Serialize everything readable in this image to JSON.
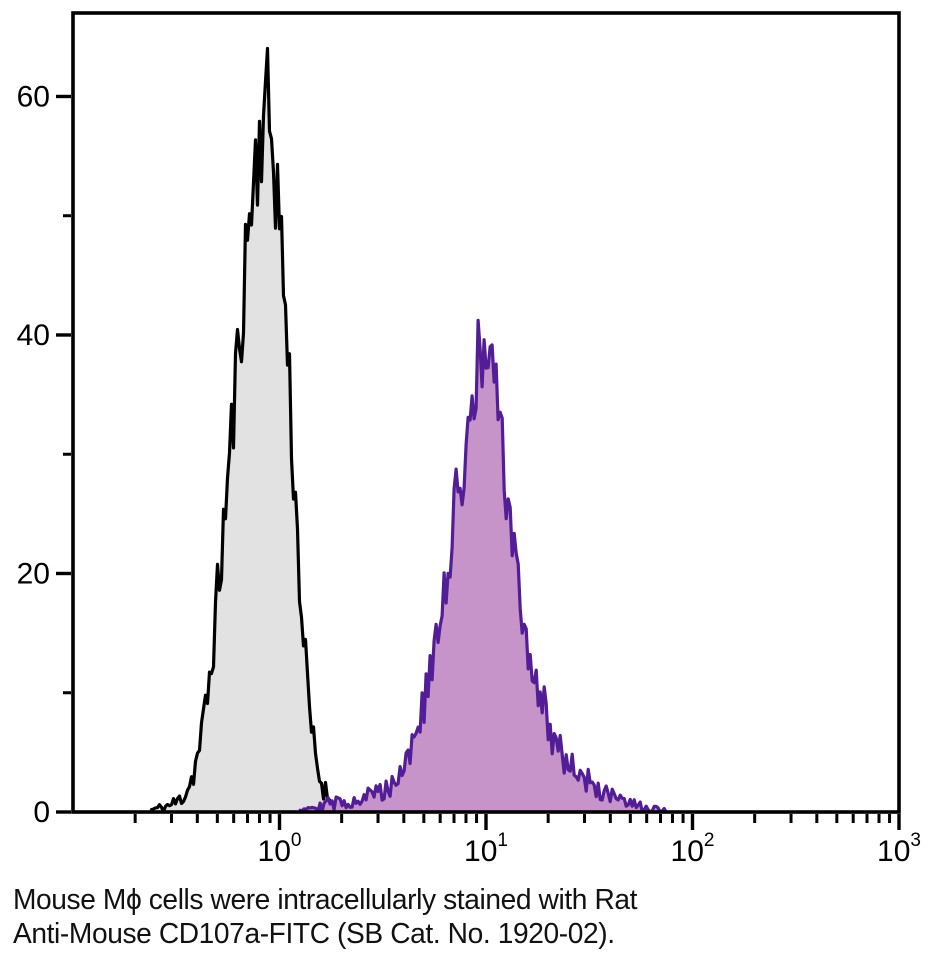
{
  "caption": {
    "line1": "Mouse Mϕ cells were intracellularly stained with Rat",
    "line2": "Anti-Mouse CD107a-FITC (SB Cat. No. 1920-02)."
  },
  "chart_data": {
    "type": "area",
    "subtype": "flow-cytometry-histogram",
    "title": "",
    "xlabel": "",
    "ylabel": "",
    "grid": false,
    "legend": "none",
    "x_axis": {
      "scale": "log10",
      "xlim": [
        0.1,
        1000
      ],
      "major_ticks": [
        {
          "value": 1,
          "log10": 0,
          "label_base": "10",
          "label_exp": "0"
        },
        {
          "value": 10,
          "log10": 1,
          "label_base": "10",
          "label_exp": "1"
        },
        {
          "value": 100,
          "log10": 2,
          "label_base": "10",
          "label_exp": "2"
        },
        {
          "value": 1000,
          "log10": 3,
          "label_base": "10",
          "label_exp": "3"
        }
      ],
      "minor_tick_multiples": [
        2,
        3,
        4,
        5,
        6,
        7,
        8,
        9
      ]
    },
    "y_axis": {
      "scale": "linear",
      "ylim": [
        0,
        67
      ],
      "major_ticks": [
        {
          "value": 0,
          "label": "0"
        },
        {
          "value": 20,
          "label": "20"
        },
        {
          "value": 40,
          "label": "40"
        },
        {
          "value": 60,
          "label": "60"
        }
      ],
      "minor_ticks": [
        10,
        30,
        50
      ]
    },
    "series": [
      {
        "name": "black_peak",
        "stroke": "#000000",
        "fill": "#e3e2e3",
        "stroke_width": 3.2,
        "noise_seed": 11,
        "noise_amp": 0.7,
        "summary": {
          "mode_x": 0.83,
          "peak_count": 63
        },
        "points_log10x_count": [
          [
            -0.62,
            0.2
          ],
          [
            -0.56,
            0.4
          ],
          [
            -0.5,
            0.8
          ],
          [
            -0.46,
            1.5
          ],
          [
            -0.42,
            3
          ],
          [
            -0.38,
            6
          ],
          [
            -0.34,
            11
          ],
          [
            -0.3,
            18
          ],
          [
            -0.26,
            26
          ],
          [
            -0.22,
            34
          ],
          [
            -0.18,
            43
          ],
          [
            -0.14,
            51
          ],
          [
            -0.1,
            56
          ],
          [
            -0.07,
            60
          ],
          [
            -0.04,
            57
          ],
          [
            -0.01,
            52
          ],
          [
            0.02,
            45
          ],
          [
            0.05,
            35
          ],
          [
            0.08,
            25
          ],
          [
            0.11,
            16
          ],
          [
            0.14,
            9
          ],
          [
            0.17,
            5
          ],
          [
            0.2,
            2.5
          ],
          [
            0.24,
            1.2
          ],
          [
            0.28,
            0.5
          ],
          [
            0.32,
            0
          ]
        ]
      },
      {
        "name": "purple_peak",
        "stroke": "#521d96",
        "fill": "#c694c8",
        "stroke_width": 3.2,
        "noise_seed": 29,
        "noise_amp": 0.7,
        "summary": {
          "mode_x": 9.5,
          "peak_count": 39
        },
        "points_log10x_count": [
          [
            0.1,
            0.4
          ],
          [
            0.2,
            0.6
          ],
          [
            0.3,
            0.8
          ],
          [
            0.4,
            1.2
          ],
          [
            0.5,
            1.8
          ],
          [
            0.55,
            2.5
          ],
          [
            0.6,
            4
          ],
          [
            0.65,
            6
          ],
          [
            0.7,
            9
          ],
          [
            0.75,
            13
          ],
          [
            0.8,
            18
          ],
          [
            0.85,
            25
          ],
          [
            0.9,
            31
          ],
          [
            0.95,
            36
          ],
          [
            0.98,
            38.5
          ],
          [
            1.02,
            37.5
          ],
          [
            1.06,
            33
          ],
          [
            1.1,
            27
          ],
          [
            1.15,
            19
          ],
          [
            1.2,
            14
          ],
          [
            1.25,
            10.5
          ],
          [
            1.3,
            7.5
          ],
          [
            1.35,
            5.5
          ],
          [
            1.4,
            4.2
          ],
          [
            1.45,
            3.2
          ],
          [
            1.5,
            2.4
          ],
          [
            1.55,
            1.8
          ],
          [
            1.6,
            1.3
          ],
          [
            1.65,
            0.9
          ],
          [
            1.7,
            0.6
          ],
          [
            1.75,
            0.4
          ],
          [
            1.8,
            0.25
          ],
          [
            1.85,
            0.1
          ],
          [
            1.88,
            0
          ]
        ]
      }
    ]
  }
}
